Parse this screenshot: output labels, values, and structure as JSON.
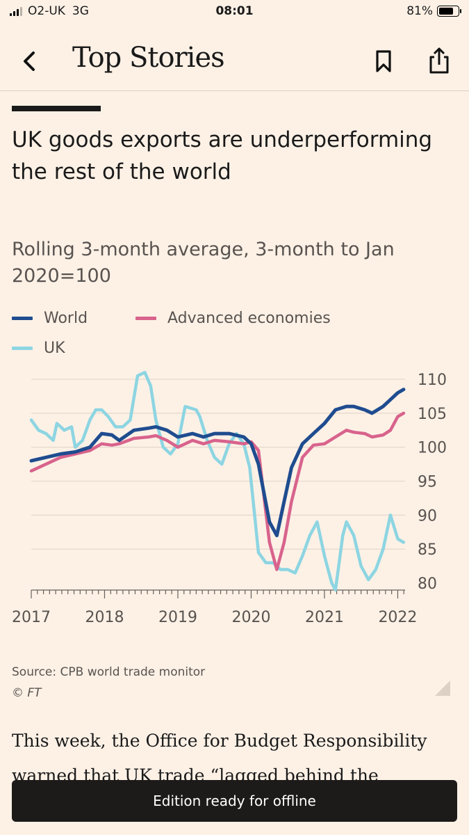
{
  "status_bar": {
    "carrier": "O2-UK",
    "network": "3G",
    "time": "08:01",
    "battery": "81%"
  },
  "nav": {
    "title": "Top Stories"
  },
  "headline": "UK goods exports are underperforming the rest of the world",
  "subtitle": "Rolling 3-month average, 3-month to Jan 2020=100",
  "legend": {
    "world": "World",
    "advanced": "Advanced economies",
    "uk": "UK"
  },
  "colors": {
    "world": "#1F4C8F",
    "advanced": "#D8638C",
    "uk": "#8DD5E2",
    "background": "#FDF1E6"
  },
  "chart_data": {
    "type": "line",
    "title": "UK goods exports are underperforming the rest of the world",
    "subtitle": "Rolling 3-month average, 3-month to Jan 2020=100",
    "xlabel": "",
    "ylabel": "",
    "y_axis_position": "right",
    "ylim": [
      80,
      110
    ],
    "yticks": [
      80,
      85,
      90,
      95,
      100,
      105,
      110
    ],
    "xlim": [
      2017,
      2022.1
    ],
    "xticks": [
      2017,
      2018,
      2019,
      2020,
      2021,
      2022
    ],
    "series": [
      {
        "name": "World",
        "x": [
          2017.0,
          2017.2,
          2017.4,
          2017.6,
          2017.8,
          2017.96,
          2018.1,
          2018.2,
          2018.4,
          2018.6,
          2018.7,
          2018.85,
          2019.0,
          2019.2,
          2019.35,
          2019.5,
          2019.7,
          2019.9,
          2020.0,
          2020.1,
          2020.25,
          2020.35,
          2020.45,
          2020.55,
          2020.7,
          2020.85,
          2021.0,
          2021.15,
          2021.3,
          2021.4,
          2021.55,
          2021.65,
          2021.8,
          2021.9,
          2022.0,
          2022.08
        ],
        "values": [
          98,
          98.5,
          99,
          99.3,
          100,
          102,
          101.8,
          101,
          102.5,
          102.8,
          103,
          102.5,
          101.5,
          102,
          101.5,
          102,
          102,
          101.5,
          100.5,
          97.5,
          89,
          87,
          92,
          97,
          100.5,
          102,
          103.5,
          105.5,
          106,
          106,
          105.5,
          105,
          106,
          107,
          108,
          108.5
        ]
      },
      {
        "name": "Advanced economies",
        "x": [
          2017.0,
          2017.2,
          2017.4,
          2017.6,
          2017.8,
          2017.96,
          2018.1,
          2018.2,
          2018.4,
          2018.6,
          2018.7,
          2018.85,
          2019.0,
          2019.2,
          2019.35,
          2019.5,
          2019.7,
          2019.9,
          2020.0,
          2020.1,
          2020.25,
          2020.35,
          2020.45,
          2020.55,
          2020.7,
          2020.85,
          2021.0,
          2021.15,
          2021.3,
          2021.4,
          2021.55,
          2021.65,
          2021.8,
          2021.9,
          2022.0,
          2022.08
        ],
        "values": [
          96.5,
          97.5,
          98.5,
          99,
          99.5,
          100.5,
          100.3,
          100.5,
          101.3,
          101.5,
          101.7,
          101,
          100,
          101,
          100.5,
          101,
          100.8,
          100.5,
          100.8,
          99.5,
          86,
          82,
          86,
          92,
          98.5,
          100.3,
          100.5,
          101.5,
          102.5,
          102.2,
          102,
          101.5,
          101.8,
          102.5,
          104.5,
          105
        ]
      },
      {
        "name": "UK",
        "x": [
          2017.0,
          2017.1,
          2017.2,
          2017.3,
          2017.35,
          2017.45,
          2017.55,
          2017.6,
          2017.7,
          2017.8,
          2017.88,
          2017.96,
          2018.05,
          2018.15,
          2018.25,
          2018.35,
          2018.45,
          2018.55,
          2018.63,
          2018.7,
          2018.8,
          2018.9,
          2019.0,
          2019.1,
          2019.25,
          2019.3,
          2019.4,
          2019.5,
          2019.6,
          2019.7,
          2019.8,
          2019.9,
          2019.98,
          2020.1,
          2020.2,
          2020.3,
          2020.4,
          2020.45,
          2020.5,
          2020.6,
          2020.7,
          2020.8,
          2020.9,
          2021.0,
          2021.05,
          2021.1,
          2021.15,
          2021.2,
          2021.25,
          2021.3,
          2021.4,
          2021.5,
          2021.6,
          2021.7,
          2021.8,
          2021.9,
          2022.0,
          2022.08
        ],
        "values": [
          104,
          102.5,
          102,
          101,
          103.5,
          102.5,
          103,
          100,
          101,
          104,
          105.5,
          105.5,
          104.5,
          103,
          103,
          104,
          110.5,
          111,
          109,
          104,
          100,
          99,
          100.5,
          106,
          105.5,
          104.5,
          101,
          98.5,
          97.5,
          100.5,
          102,
          100.5,
          97,
          84.5,
          83,
          83,
          82,
          82,
          82,
          81.5,
          84,
          87,
          89,
          84,
          82,
          80,
          79,
          83,
          87,
          89,
          87,
          82.5,
          80.5,
          82,
          85,
          90,
          86.5,
          86
        ]
      }
    ]
  },
  "source": "Source: CPB world trade monitor",
  "copyright": "© FT",
  "body_text": "This week, the Office for Budget Responsibility warned that UK trade “lagged behind the",
  "toast": "Edition ready for offline"
}
